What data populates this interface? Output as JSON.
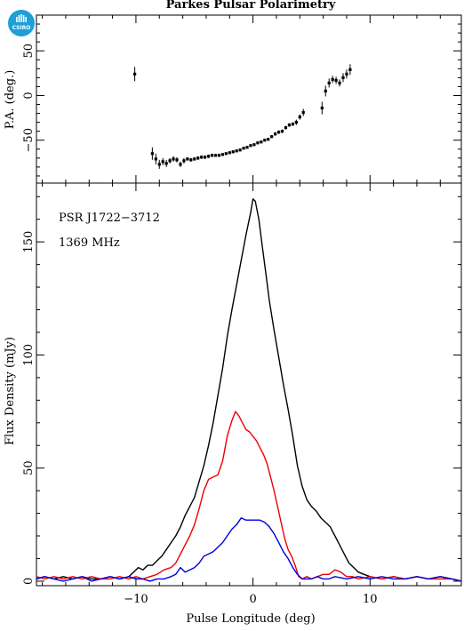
{
  "logo_text": "CSIRO",
  "colors": {
    "total": "#000000",
    "linear": "#ee0000",
    "circular": "#0000dd",
    "frame": "#000000"
  },
  "chart_data": [
    {
      "type": "scatter",
      "title": "Parkes Pulsar Polarimetry",
      "xlabel": "",
      "ylabel": "P.A. (deg.)",
      "xlim": [
        -18.5,
        17.8
      ],
      "ylim": [
        -98,
        90
      ],
      "xticks": [
        -10,
        0,
        10
      ],
      "yticks": [
        -50,
        0,
        50
      ],
      "error_bars": true,
      "points": [
        {
          "x": -10.1,
          "y": 24,
          "err": 8
        },
        {
          "x": -8.6,
          "y": -65,
          "err": 7
        },
        {
          "x": -8.3,
          "y": -71,
          "err": 6
        },
        {
          "x": -8.0,
          "y": -77,
          "err": 5
        },
        {
          "x": -7.7,
          "y": -74,
          "err": 4
        },
        {
          "x": -7.4,
          "y": -76,
          "err": 4
        },
        {
          "x": -7.1,
          "y": -73,
          "err": 3
        },
        {
          "x": -6.8,
          "y": -71,
          "err": 3
        },
        {
          "x": -6.5,
          "y": -72,
          "err": 3
        },
        {
          "x": -6.2,
          "y": -77,
          "err": 3
        },
        {
          "x": -5.9,
          "y": -73,
          "err": 3
        },
        {
          "x": -5.6,
          "y": -71,
          "err": 2
        },
        {
          "x": -5.3,
          "y": -72,
          "err": 2
        },
        {
          "x": -5.0,
          "y": -71,
          "err": 2
        },
        {
          "x": -4.7,
          "y": -70,
          "err": 2
        },
        {
          "x": -4.4,
          "y": -69,
          "err": 2
        },
        {
          "x": -4.1,
          "y": -69,
          "err": 2
        },
        {
          "x": -3.8,
          "y": -68,
          "err": 2
        },
        {
          "x": -3.5,
          "y": -67,
          "err": 1.5
        },
        {
          "x": -3.2,
          "y": -67,
          "err": 1.5
        },
        {
          "x": -2.9,
          "y": -67,
          "err": 1.5
        },
        {
          "x": -2.6,
          "y": -66,
          "err": 1.5
        },
        {
          "x": -2.3,
          "y": -65,
          "err": 1.5
        },
        {
          "x": -2.0,
          "y": -64,
          "err": 1.5
        },
        {
          "x": -1.7,
          "y": -63,
          "err": 1.5
        },
        {
          "x": -1.4,
          "y": -62,
          "err": 1.5
        },
        {
          "x": -1.1,
          "y": -61,
          "err": 1.5
        },
        {
          "x": -0.8,
          "y": -59,
          "err": 1.5
        },
        {
          "x": -0.5,
          "y": -58,
          "err": 1.5
        },
        {
          "x": -0.2,
          "y": -56,
          "err": 1.5
        },
        {
          "x": 0.1,
          "y": -55,
          "err": 1.5
        },
        {
          "x": 0.4,
          "y": -53,
          "err": 1.5
        },
        {
          "x": 0.7,
          "y": -52,
          "err": 1.5
        },
        {
          "x": 1.0,
          "y": -50,
          "err": 1.5
        },
        {
          "x": 1.3,
          "y": -49,
          "err": 1.5
        },
        {
          "x": 1.6,
          "y": -46,
          "err": 1.5
        },
        {
          "x": 1.9,
          "y": -43,
          "err": 2
        },
        {
          "x": 2.2,
          "y": -41,
          "err": 2
        },
        {
          "x": 2.5,
          "y": -40,
          "err": 2
        },
        {
          "x": 2.8,
          "y": -36,
          "err": 2
        },
        {
          "x": 3.1,
          "y": -33,
          "err": 2
        },
        {
          "x": 3.4,
          "y": -32,
          "err": 2
        },
        {
          "x": 3.7,
          "y": -30,
          "err": 3
        },
        {
          "x": 4.0,
          "y": -24,
          "err": 3
        },
        {
          "x": 4.3,
          "y": -19,
          "err": 4
        },
        {
          "x": 5.9,
          "y": -14,
          "err": 7
        },
        {
          "x": 6.2,
          "y": 5,
          "err": 6
        },
        {
          "x": 6.5,
          "y": 14,
          "err": 5
        },
        {
          "x": 6.8,
          "y": 18,
          "err": 4
        },
        {
          "x": 7.1,
          "y": 17,
          "err": 4
        },
        {
          "x": 7.4,
          "y": 14,
          "err": 4
        },
        {
          "x": 7.7,
          "y": 20,
          "err": 5
        },
        {
          "x": 8.0,
          "y": 24,
          "err": 5
        },
        {
          "x": 8.3,
          "y": 29,
          "err": 6
        }
      ]
    },
    {
      "type": "line",
      "title": "",
      "annotations": [
        "PSR J1722−3712",
        "1369 MHz"
      ],
      "xlabel": "Pulse Longitude (deg)",
      "ylabel": "Flux Density (mJy)",
      "xlim": [
        -18.5,
        17.8
      ],
      "ylim": [
        -2,
        176
      ],
      "xticks": [
        -10,
        0,
        10
      ],
      "yticks": [
        0,
        50,
        100,
        150
      ],
      "series": [
        {
          "key": "total",
          "x": [
            -18.5,
            -17.8,
            -17,
            -16.2,
            -15.4,
            -14.6,
            -13.8,
            -13,
            -12.2,
            -11.4,
            -10.6,
            -10.2,
            -9.8,
            -9.4,
            -9,
            -8.6,
            -8.2,
            -7.8,
            -7.4,
            -7,
            -6.6,
            -6.2,
            -5.8,
            -5.4,
            -5,
            -4.6,
            -4.2,
            -3.8,
            -3.4,
            -3,
            -2.6,
            -2.2,
            -1.8,
            -1.4,
            -1,
            -0.6,
            -0.2,
            0,
            0.2,
            0.5,
            0.8,
            1.1,
            1.4,
            1.8,
            2.2,
            2.6,
            3,
            3.4,
            3.8,
            4.2,
            4.6,
            5,
            5.4,
            5.8,
            6.2,
            6.6,
            7,
            7.4,
            7.8,
            8.2,
            8.6,
            9,
            9.5,
            10,
            11,
            12,
            13,
            14,
            15,
            16,
            17,
            17.8
          ],
          "y": [
            1,
            2,
            1,
            2,
            1,
            2,
            1,
            1,
            2,
            1,
            2,
            4,
            6,
            5,
            7,
            7,
            9,
            11,
            14,
            17,
            20,
            24,
            29,
            33,
            37,
            44,
            51,
            60,
            70,
            82,
            94,
            108,
            120,
            131,
            142,
            153,
            163,
            169,
            168,
            160,
            148,
            136,
            124,
            111,
            99,
            87,
            76,
            64,
            51,
            42,
            36,
            33,
            31,
            28,
            26,
            24,
            20,
            16,
            12,
            8,
            6,
            4,
            3,
            2,
            1,
            2,
            1,
            2,
            1,
            2,
            1,
            0
          ]
        },
        {
          "key": "linear",
          "x": [
            -18.5,
            -17.8,
            -17,
            -16.2,
            -15.4,
            -14.6,
            -13.8,
            -13,
            -12.2,
            -11.4,
            -10.6,
            -10,
            -9.4,
            -8.8,
            -8.2,
            -7.6,
            -7,
            -6.6,
            -6.2,
            -5.8,
            -5.4,
            -5,
            -4.6,
            -4.2,
            -3.8,
            -3.4,
            -3,
            -2.6,
            -2.2,
            -1.8,
            -1.5,
            -1.2,
            -0.9,
            -0.6,
            -0.3,
            0,
            0.3,
            0.6,
            0.9,
            1.2,
            1.5,
            1.8,
            2.1,
            2.4,
            2.7,
            3,
            3.3,
            3.6,
            3.9,
            4.2,
            4.6,
            5,
            5.5,
            6,
            6.5,
            7,
            7.5,
            8,
            8.5,
            9,
            10,
            11,
            12,
            13,
            14,
            15,
            16,
            17,
            17.8
          ],
          "y": [
            2,
            1,
            2,
            1,
            2,
            1,
            2,
            1,
            1,
            2,
            1,
            2,
            1,
            2,
            3,
            5,
            6,
            8,
            12,
            16,
            20,
            25,
            32,
            40,
            45,
            46,
            47,
            53,
            64,
            71,
            75,
            73,
            70,
            67,
            66,
            64,
            62,
            59,
            56,
            52,
            46,
            40,
            33,
            26,
            19,
            14,
            11,
            7,
            2,
            1,
            2,
            1,
            2,
            3,
            3,
            5,
            4,
            2,
            2,
            1,
            2,
            1,
            2,
            1,
            2,
            1,
            1,
            1,
            0
          ]
        },
        {
          "key": "circular",
          "x": [
            -18.5,
            -17.8,
            -17,
            -16.2,
            -15.4,
            -14.6,
            -13.8,
            -13,
            -12.2,
            -11.4,
            -10.6,
            -10,
            -9.4,
            -8.8,
            -8.2,
            -7.6,
            -7,
            -6.6,
            -6.2,
            -5.8,
            -5.4,
            -5,
            -4.6,
            -4.2,
            -3.8,
            -3.4,
            -3,
            -2.6,
            -2.2,
            -1.8,
            -1.4,
            -1,
            -0.6,
            -0.2,
            0.2,
            0.6,
            1,
            1.4,
            1.8,
            2.2,
            2.6,
            3,
            3.4,
            3.8,
            4.2,
            4.6,
            5,
            5.5,
            6,
            6.5,
            7,
            8,
            9,
            10,
            11,
            12,
            13,
            14,
            15,
            16,
            17,
            17.8
          ],
          "y": [
            1,
            2,
            1,
            0,
            1,
            2,
            0,
            1,
            2,
            1,
            2,
            1,
            1,
            0,
            1,
            1,
            2,
            3,
            6,
            4,
            5,
            6,
            8,
            11,
            12,
            13,
            15,
            17,
            20,
            23,
            25,
            28,
            27,
            27,
            27,
            27,
            26,
            24,
            21,
            17,
            13,
            10,
            6,
            3,
            1,
            1,
            1,
            2,
            1,
            1,
            2,
            1,
            2,
            1,
            2,
            1,
            1,
            2,
            1,
            2,
            1,
            0
          ]
        }
      ]
    }
  ]
}
